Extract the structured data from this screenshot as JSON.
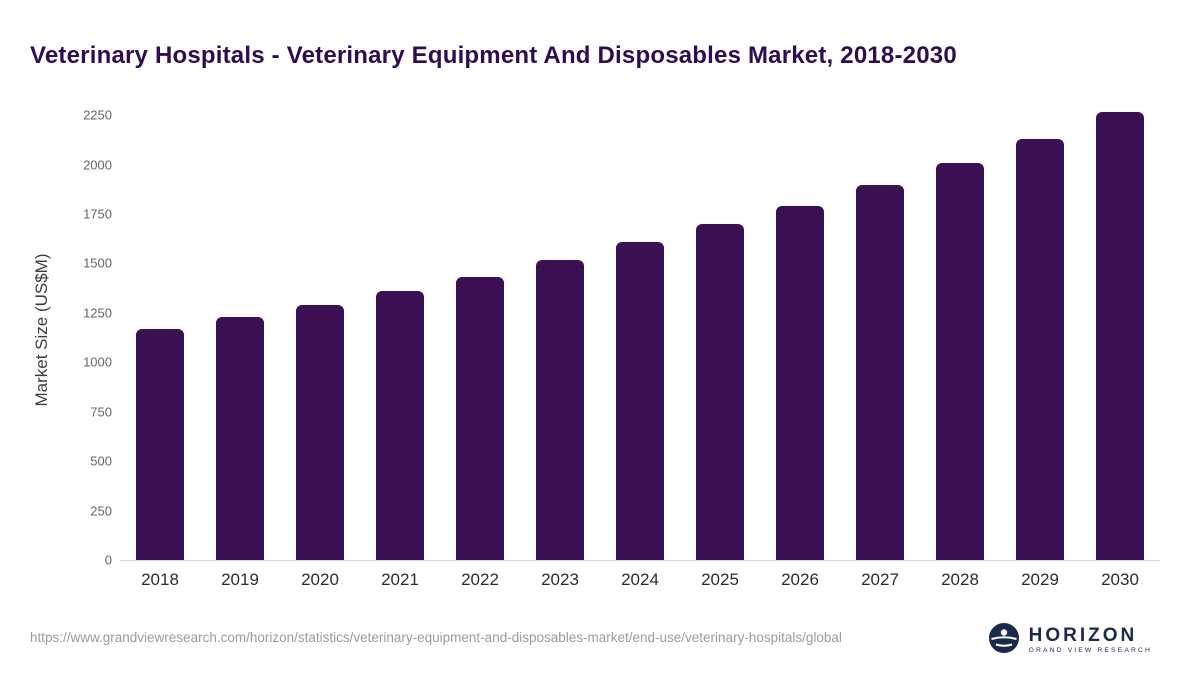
{
  "header": {
    "title": "Veterinary Hospitals - Veterinary Equipment And Disposables Market, 2018-2030"
  },
  "chart_data": {
    "type": "bar",
    "title": "Veterinary Hospitals - Veterinary Equipment And Disposables Market, 2018-2030",
    "categories": [
      "2018",
      "2019",
      "2020",
      "2021",
      "2022",
      "2023",
      "2024",
      "2025",
      "2026",
      "2027",
      "2028",
      "2029",
      "2030"
    ],
    "values": [
      1170,
      1228,
      1290,
      1360,
      1432,
      1518,
      1608,
      1697,
      1790,
      1897,
      2007,
      2130,
      2265
    ],
    "xlabel": "",
    "ylabel": "Market Size (US$M)",
    "ylim": [
      0,
      2250
    ],
    "yticks": [
      0,
      250,
      500,
      750,
      1000,
      1250,
      1500,
      1750,
      2000,
      2250
    ],
    "grid": false,
    "legend": "none",
    "bar_color": "#3b1053"
  },
  "footer": {
    "source_url": "https://www.grandviewresearch.com/horizon/statistics/veterinary-equipment-and-disposables-market/end-use/veterinary-hospitals/global",
    "logo": {
      "brand": "HORIZON",
      "subtitle": "GRAND VIEW RESEARCH"
    }
  },
  "colors": {
    "title": "#2f0d50",
    "bar": "#3b1053",
    "ytick_text": "#666666",
    "xtick_text": "#2e2e2e",
    "url_text": "#9b9b9b",
    "logo_navy": "#1b2a4a"
  }
}
